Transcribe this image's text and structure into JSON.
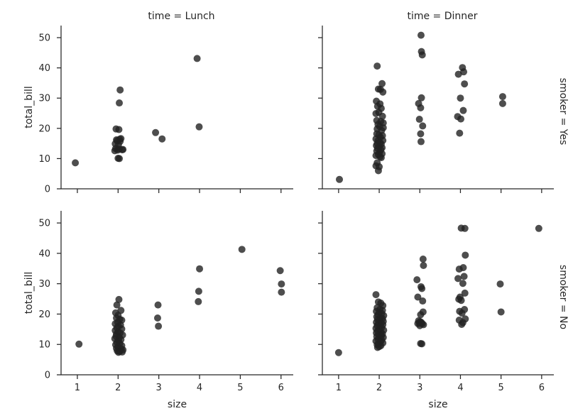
{
  "chart_data": {
    "type": "scatter",
    "grid": false,
    "point_color": "#222222",
    "point_opacity": 0.8,
    "xlabel": "size",
    "ylabel": "total_bill",
    "xticks": [
      "1",
      "2",
      "3",
      "4",
      "5",
      "6"
    ],
    "yticks": [
      "0",
      "10",
      "20",
      "30",
      "40",
      "50"
    ],
    "xlim": [
      0.6,
      6.3
    ],
    "ylim": [
      0,
      54
    ],
    "panels": [
      {
        "id": "lunch-yes",
        "col_title": "time = Lunch",
        "row_title": "",
        "points": [
          [
            0.95,
            8.6
          ],
          [
            1.95,
            19.8
          ],
          [
            2.02,
            19.6
          ],
          [
            1.98,
            15.9
          ],
          [
            2.05,
            15.7
          ],
          [
            1.93,
            14.9
          ],
          [
            2.01,
            14.6
          ],
          [
            2.04,
            16.4
          ],
          [
            1.96,
            16.2
          ],
          [
            2.07,
            16.6
          ],
          [
            1.94,
            13.3
          ],
          [
            2.03,
            13.2
          ],
          [
            2.1,
            12.9
          ],
          [
            1.99,
            12.8
          ],
          [
            2.12,
            13.0
          ],
          [
            1.92,
            12.6
          ],
          [
            2.0,
            10.1
          ],
          [
            2.03,
            10.0
          ],
          [
            2.05,
            32.7
          ],
          [
            2.03,
            28.4
          ],
          [
            2.92,
            18.6
          ],
          [
            3.08,
            16.5
          ],
          [
            3.94,
            43.1
          ],
          [
            3.99,
            20.5
          ]
        ]
      },
      {
        "id": "dinner-yes",
        "col_title": "time = Dinner",
        "row_title": "smoker = Yes",
        "points": [
          [
            1.02,
            3.1
          ],
          [
            1.95,
            40.6
          ],
          [
            2.07,
            34.8
          ],
          [
            1.98,
            33.0
          ],
          [
            2.03,
            32.9
          ],
          [
            2.09,
            32.0
          ],
          [
            1.93,
            29.0
          ],
          [
            2.02,
            28.1
          ],
          [
            1.96,
            27.3
          ],
          [
            2.05,
            26.6
          ],
          [
            1.99,
            25.3
          ],
          [
            1.92,
            24.9
          ],
          [
            2.08,
            24.0
          ],
          [
            1.94,
            22.6
          ],
          [
            2.04,
            22.3
          ],
          [
            2.1,
            21.8
          ],
          [
            1.97,
            21.3
          ],
          [
            2.01,
            20.6
          ],
          [
            2.1,
            20.2
          ],
          [
            1.95,
            19.8
          ],
          [
            2.06,
            19.3
          ],
          [
            1.94,
            18.2
          ],
          [
            1.99,
            17.8
          ],
          [
            2.08,
            17.6
          ],
          [
            2.03,
            17.1
          ],
          [
            1.92,
            16.5
          ],
          [
            2.09,
            16.0
          ],
          [
            1.97,
            15.9
          ],
          [
            2.02,
            15.3
          ],
          [
            1.95,
            15.0
          ],
          [
            2.05,
            14.8
          ],
          [
            1.93,
            14.3
          ],
          [
            2.0,
            13.9
          ],
          [
            2.07,
            13.6
          ],
          [
            1.96,
            13.4
          ],
          [
            2.04,
            12.9
          ],
          [
            1.94,
            12.5
          ],
          [
            2.01,
            12.0
          ],
          [
            2.07,
            11.6
          ],
          [
            1.98,
            11.3
          ],
          [
            1.92,
            11.0
          ],
          [
            2.02,
            10.6
          ],
          [
            2.05,
            10.3
          ],
          [
            1.95,
            8.6
          ],
          [
            1.92,
            7.6
          ],
          [
            2.0,
            7.3
          ],
          [
            1.98,
            6.0
          ],
          [
            3.03,
            50.8
          ],
          [
            3.04,
            45.4
          ],
          [
            3.06,
            44.3
          ],
          [
            3.04,
            30.1
          ],
          [
            2.97,
            28.2
          ],
          [
            3.02,
            26.8
          ],
          [
            2.99,
            23.0
          ],
          [
            3.07,
            20.8
          ],
          [
            3.02,
            18.2
          ],
          [
            3.03,
            15.6
          ],
          [
            4.05,
            40.1
          ],
          [
            4.08,
            38.7
          ],
          [
            3.95,
            37.9
          ],
          [
            4.1,
            34.7
          ],
          [
            4.0,
            30.0
          ],
          [
            4.07,
            25.9
          ],
          [
            3.93,
            23.9
          ],
          [
            4.01,
            23.1
          ],
          [
            3.98,
            18.4
          ],
          [
            5.04,
            30.5
          ],
          [
            5.04,
            28.2
          ]
        ]
      },
      {
        "id": "lunch-no",
        "col_title": "",
        "row_title": "",
        "points": [
          [
            1.04,
            10.1
          ],
          [
            2.02,
            24.8
          ],
          [
            1.97,
            23.0
          ],
          [
            2.07,
            21.2
          ],
          [
            1.94,
            20.4
          ],
          [
            2.0,
            19.6
          ],
          [
            1.96,
            18.7
          ],
          [
            2.04,
            18.3
          ],
          [
            2.09,
            18.0
          ],
          [
            1.99,
            17.3
          ],
          [
            1.93,
            16.8
          ],
          [
            2.06,
            16.4
          ],
          [
            2.01,
            16.0
          ],
          [
            1.97,
            15.5
          ],
          [
            2.09,
            15.1
          ],
          [
            1.93,
            14.6
          ],
          [
            2.0,
            14.1
          ],
          [
            2.05,
            13.8
          ],
          [
            1.96,
            13.4
          ],
          [
            2.11,
            13.1
          ],
          [
            1.95,
            12.7
          ],
          [
            2.03,
            12.3
          ],
          [
            1.92,
            11.9
          ],
          [
            2.07,
            11.6
          ],
          [
            2.01,
            11.3
          ],
          [
            1.97,
            10.7
          ],
          [
            2.04,
            10.3
          ],
          [
            1.94,
            9.9
          ],
          [
            2.09,
            9.6
          ],
          [
            2.0,
            9.2
          ],
          [
            1.96,
            8.7
          ],
          [
            2.08,
            8.5
          ],
          [
            2.12,
            8.2
          ],
          [
            1.98,
            7.9
          ],
          [
            2.04,
            7.7
          ],
          [
            2.1,
            7.5
          ],
          [
            2.01,
            7.4
          ],
          [
            2.98,
            23.0
          ],
          [
            2.97,
            18.7
          ],
          [
            2.99,
            16.0
          ],
          [
            4.0,
            34.9
          ],
          [
            3.98,
            27.5
          ],
          [
            3.97,
            24.1
          ],
          [
            5.04,
            41.3
          ],
          [
            5.98,
            34.3
          ],
          [
            6.01,
            29.9
          ],
          [
            6.01,
            27.2
          ]
        ]
      },
      {
        "id": "dinner-no",
        "col_title": "",
        "row_title": "smoker = No",
        "points": [
          [
            1.0,
            7.3
          ],
          [
            1.92,
            26.4
          ],
          [
            1.98,
            24.0
          ],
          [
            2.04,
            23.6
          ],
          [
            2.09,
            22.8
          ],
          [
            1.95,
            22.1
          ],
          [
            2.02,
            21.6
          ],
          [
            2.08,
            21.2
          ],
          [
            1.93,
            20.9
          ],
          [
            2.0,
            20.6
          ],
          [
            2.06,
            20.2
          ],
          [
            1.97,
            19.8
          ],
          [
            2.11,
            19.5
          ],
          [
            1.94,
            19.1
          ],
          [
            2.03,
            18.8
          ],
          [
            2.08,
            18.5
          ],
          [
            1.96,
            18.2
          ],
          [
            2.01,
            17.9
          ],
          [
            2.1,
            17.6
          ],
          [
            1.93,
            17.3
          ],
          [
            2.05,
            17.1
          ],
          [
            1.98,
            16.8
          ],
          [
            2.09,
            16.5
          ],
          [
            1.95,
            16.2
          ],
          [
            2.02,
            15.9
          ],
          [
            2.06,
            15.6
          ],
          [
            1.92,
            15.3
          ],
          [
            2.0,
            15.0
          ],
          [
            2.11,
            14.7
          ],
          [
            1.96,
            14.4
          ],
          [
            2.04,
            14.1
          ],
          [
            1.93,
            13.8
          ],
          [
            2.08,
            13.5
          ],
          [
            1.99,
            13.2
          ],
          [
            2.05,
            12.9
          ],
          [
            1.94,
            12.6
          ],
          [
            2.1,
            12.3
          ],
          [
            2.01,
            12.0
          ],
          [
            1.97,
            11.7
          ],
          [
            2.06,
            11.4
          ],
          [
            1.92,
            11.1
          ],
          [
            2.03,
            10.8
          ],
          [
            2.09,
            10.5
          ],
          [
            1.98,
            10.2
          ],
          [
            1.95,
            9.9
          ],
          [
            2.04,
            9.6
          ],
          [
            2.0,
            9.3
          ],
          [
            1.96,
            9.0
          ],
          [
            3.08,
            38.1
          ],
          [
            3.09,
            36.0
          ],
          [
            2.93,
            31.3
          ],
          [
            3.03,
            29.0
          ],
          [
            3.05,
            28.4
          ],
          [
            2.95,
            25.6
          ],
          [
            3.07,
            24.3
          ],
          [
            3.08,
            20.7
          ],
          [
            3.02,
            19.8
          ],
          [
            2.97,
            17.8
          ],
          [
            3.01,
            17.5
          ],
          [
            3.04,
            17.2
          ],
          [
            2.99,
            17.0
          ],
          [
            3.06,
            16.8
          ],
          [
            3.09,
            16.5
          ],
          [
            2.95,
            16.9
          ],
          [
            3.0,
            16.2
          ],
          [
            3.02,
            10.3
          ],
          [
            3.05,
            10.2
          ],
          [
            4.02,
            48.3
          ],
          [
            4.11,
            48.2
          ],
          [
            4.12,
            39.4
          ],
          [
            4.07,
            35.3
          ],
          [
            3.97,
            34.8
          ],
          [
            4.09,
            32.4
          ],
          [
            3.94,
            31.7
          ],
          [
            4.06,
            30.1
          ],
          [
            4.11,
            26.9
          ],
          [
            3.99,
            25.6
          ],
          [
            3.96,
            24.9
          ],
          [
            4.02,
            24.5
          ],
          [
            4.1,
            21.5
          ],
          [
            3.98,
            20.9
          ],
          [
            4.04,
            20.3
          ],
          [
            4.12,
            18.4
          ],
          [
            3.97,
            18.0
          ],
          [
            4.06,
            17.2
          ],
          [
            4.03,
            16.6
          ],
          [
            4.98,
            29.9
          ],
          [
            5.0,
            20.7
          ],
          [
            5.93,
            48.2
          ]
        ]
      }
    ]
  }
}
